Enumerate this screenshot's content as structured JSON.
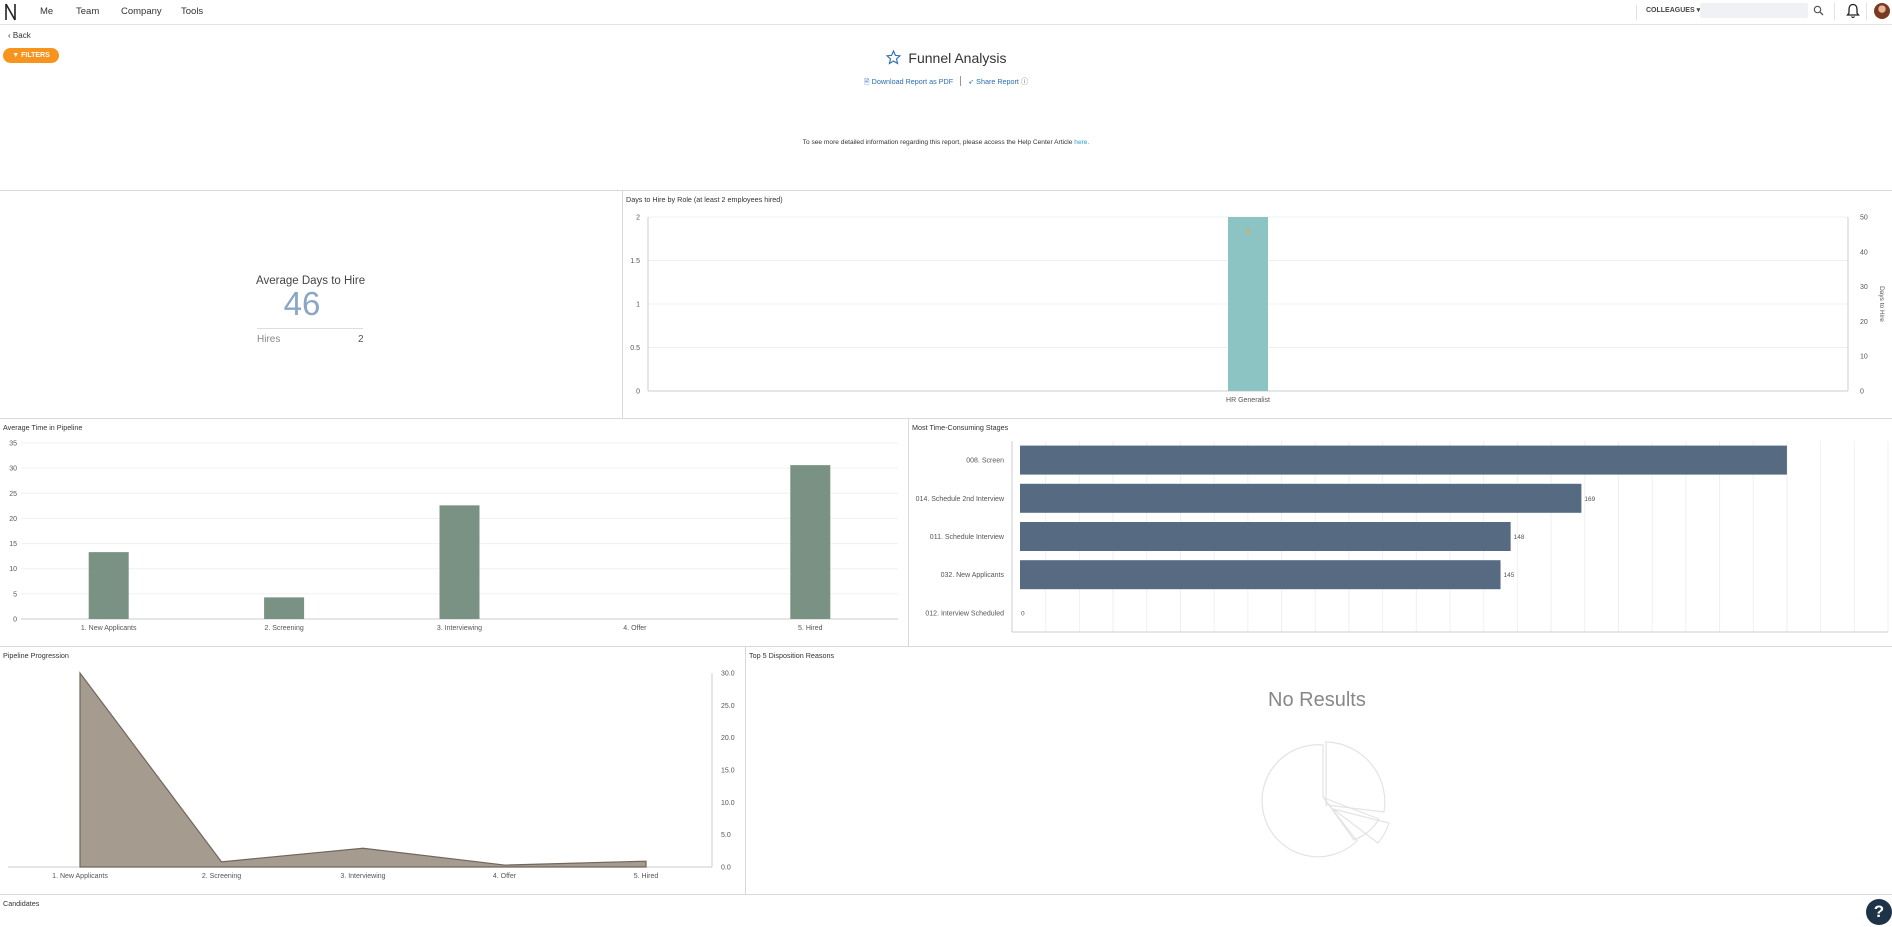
{
  "nav": {
    "items": [
      "Me",
      "Team",
      "Company",
      "Tools"
    ],
    "colleagues_label": "COLLEAGUES",
    "search_placeholder": ""
  },
  "header": {
    "back_label": "Back",
    "filters_label": "FILTERS",
    "title": "Funnel Analysis",
    "download_label": "Download Report as PDF",
    "share_label": "Share Report",
    "help_text": "To see more detailed information regarding this report, please access the Help Center Article",
    "help_link": "here."
  },
  "kpi": {
    "title": "Average Days to Hire",
    "value": "46",
    "hires_label": "Hires",
    "hires_value": "2"
  },
  "panels": {
    "days_to_hire": "Days to Hire by Role (at least 2 employees hired)",
    "avg_time": "Average Time in Pipeline",
    "stages": "Most Time-Consuming Stages",
    "progression": "Pipeline Progression",
    "disposition": "Top 5 Disposition Reasons",
    "candidates": "Candidates"
  },
  "no_results": "No Results",
  "help_button": "?",
  "colors": {
    "accent": "#f7941d",
    "link": "#2b6cb0",
    "teal": "#8cc3c3",
    "green": "#7a9283",
    "slate": "#566a82",
    "taupe": "#a69b8f"
  },
  "chart_data": [
    {
      "type": "bar",
      "title": "Days to Hire by Role (at least 2 employees hired)",
      "categories": [
        "HR Generalist"
      ],
      "series": [
        {
          "name": "",
          "values": [
            2
          ]
        }
      ],
      "secondary_series": [
        {
          "name": "",
          "values": [
            46
          ]
        }
      ],
      "ylim": [
        0,
        2
      ],
      "y_ticks": [
        "0",
        "0.5",
        "1",
        "1.5",
        "2"
      ],
      "y2lim": [
        0,
        50
      ],
      "y2_ticks": [
        "0",
        "10",
        "20",
        "30",
        "40",
        "50"
      ],
      "y2label": "Days to Hire"
    },
    {
      "type": "bar",
      "title": "Average Time in Pipeline",
      "categories": [
        "1. New Applicants",
        "2. Screening",
        "3. Interviewing",
        "4. Offer",
        "5. Hired"
      ],
      "values": [
        13.3,
        4.3,
        22.6,
        0,
        30.6
      ],
      "ylim": [
        0,
        35
      ],
      "y_ticks": [
        "0",
        "5",
        "10",
        "15",
        "20",
        "25",
        "30",
        "35"
      ]
    },
    {
      "type": "bar",
      "orientation": "horizontal",
      "title": "Most Time-Consuming Stages",
      "categories": [
        "008. Screen",
        "014. Schedule 2nd Interview",
        "011. Schedule Interview",
        "032. New Applicants",
        "012. Interview Scheduled"
      ],
      "values": [
        230,
        169,
        148,
        145,
        0
      ],
      "data_labels": [
        "",
        "169",
        "148",
        "145",
        "0"
      ],
      "xlim": [
        0,
        260
      ]
    },
    {
      "type": "area",
      "title": "Pipeline Progression",
      "categories": [
        "1. New Applicants",
        "2. Screening",
        "3. Interviewing",
        "4. Offer",
        "5. Hired"
      ],
      "values": [
        30,
        0.8,
        2.9,
        0.3,
        0.9
      ],
      "ylim": [
        0,
        30
      ],
      "y_ticks": [
        "0.0",
        "5.0",
        "10.0",
        "15.0",
        "20.0",
        "25.0",
        "30.0"
      ]
    }
  ]
}
